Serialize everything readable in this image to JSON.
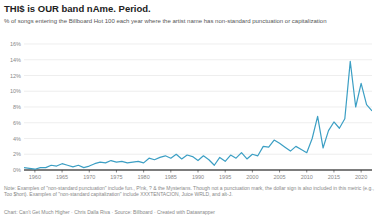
{
  "chart_data": {
    "type": "line",
    "title": "THI$ is OUR band nAme. Period.",
    "subtitle": "% of songs entering the Billboard Hot 100 each year where the artist name has non-standard punctuation or capitalization",
    "note": "Note: Examples of \"non-standard punctuation\" include fun., P!nk, ? & the Mysterians. Though not a punctuation mark, the dollar sign is also included in this metric (e.g., Too $hort). Examples of \"non-standard capitalization\" include XXXTENTACION, Juice WRLD, and alt-J.",
    "credit": "Chart: Can't Get Much Higher · Chris Dalla Riva · Source: Billboard · Created with Datawrapper",
    "x": [
      1958,
      1959,
      1960,
      1961,
      1962,
      1963,
      1964,
      1965,
      1966,
      1967,
      1968,
      1969,
      1970,
      1971,
      1972,
      1973,
      1974,
      1975,
      1976,
      1977,
      1978,
      1979,
      1980,
      1981,
      1982,
      1983,
      1984,
      1985,
      1986,
      1987,
      1988,
      1989,
      1990,
      1991,
      1992,
      1993,
      1994,
      1995,
      1996,
      1997,
      1998,
      1999,
      2000,
      2001,
      2002,
      2003,
      2004,
      2005,
      2006,
      2007,
      2008,
      2009,
      2010,
      2011,
      2012,
      2013,
      2014,
      2015,
      2016,
      2017,
      2018,
      2019,
      2020,
      2021,
      2022
    ],
    "values": [
      0.3,
      0.2,
      0.1,
      0.3,
      0.3,
      0.6,
      0.5,
      0.8,
      0.6,
      0.4,
      0.6,
      0.3,
      0.5,
      0.8,
      1.0,
      0.9,
      1.2,
      1.0,
      1.1,
      0.9,
      1.0,
      1.1,
      0.9,
      1.5,
      1.3,
      1.6,
      1.8,
      1.5,
      2.0,
      1.4,
      1.9,
      1.7,
      1.2,
      1.8,
      1.3,
      0.6,
      1.6,
      1.1,
      1.9,
      1.5,
      2.2,
      1.4,
      2.0,
      1.8,
      3.0,
      2.9,
      3.8,
      3.4,
      2.9,
      2.4,
      3.0,
      2.6,
      2.2,
      4.0,
      6.8,
      2.8,
      5.0,
      6.1,
      5.3,
      6.5,
      13.8,
      8.0,
      11.0,
      8.3,
      7.5
    ],
    "color": "#3c9fc4",
    "xlim": [
      1958,
      2022
    ],
    "xticks": [
      1960,
      1965,
      1970,
      1975,
      1980,
      1985,
      1990,
      1995,
      2000,
      2005,
      2010,
      2015,
      2020
    ],
    "ylim": [
      0,
      16
    ],
    "yticks": [
      {
        "value": 0,
        "label": "0%"
      },
      {
        "value": 2,
        "label": "2%"
      },
      {
        "value": 4,
        "label": "4%"
      },
      {
        "value": 6,
        "label": "6%"
      },
      {
        "value": 8,
        "label": "8%"
      },
      {
        "value": 10,
        "label": "10%"
      },
      {
        "value": 12,
        "label": "12%"
      },
      {
        "value": 14,
        "label": "14%"
      },
      {
        "value": 16,
        "label": "16%"
      }
    ],
    "grid": true
  }
}
